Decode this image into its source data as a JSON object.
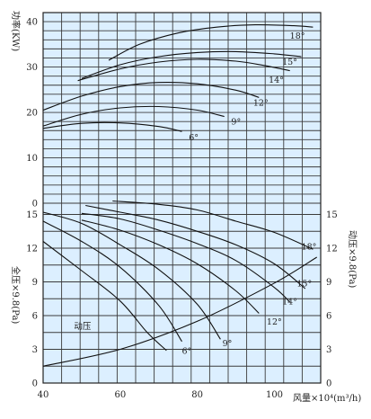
{
  "chart_data": {
    "type": "line",
    "x_axis": {
      "label": "风量×10⁴(m³/h)",
      "range": [
        40,
        112
      ],
      "ticks": [
        40,
        60,
        80,
        100
      ]
    },
    "power_panel": {
      "ylabel": "功率(KW)",
      "ylim": [
        0,
        42
      ],
      "ticks": [
        0,
        10,
        20,
        30,
        40
      ],
      "series": [
        {
          "name": "18°",
          "x": [
            57,
            65,
            75,
            85,
            95,
            105,
            110
          ],
          "y": [
            31.5,
            35,
            37.5,
            38.8,
            39.3,
            39.1,
            38.8
          ]
        },
        {
          "name": "15°",
          "x": [
            50,
            60,
            70,
            80,
            90,
            100,
            107
          ],
          "y": [
            27.5,
            30.5,
            32.3,
            33.2,
            33.4,
            32.9,
            32.3
          ]
        },
        {
          "name": "14°",
          "x": [
            49,
            60,
            70,
            80,
            90,
            97,
            104
          ],
          "y": [
            27,
            29.6,
            31.1,
            31.7,
            31.3,
            30.4,
            29.2
          ]
        },
        {
          "name": "12°",
          "x": [
            40,
            50,
            60,
            70,
            80,
            90,
            96
          ],
          "y": [
            20.5,
            23.6,
            25.7,
            26.6,
            26.3,
            24.9,
            23.3
          ]
        },
        {
          "name": "9°",
          "x": [
            40,
            50,
            60,
            70,
            80,
            87
          ],
          "y": [
            17,
            19.6,
            21,
            21.3,
            20.5,
            19.1
          ]
        },
        {
          "name": "6°",
          "x": [
            40,
            50,
            60,
            70,
            76
          ],
          "y": [
            16.5,
            17.6,
            17.7,
            16.9,
            15.8
          ]
        }
      ],
      "annotations": [
        {
          "text": "18°",
          "x": 104,
          "y": 36.3
        },
        {
          "text": "15°",
          "x": 102,
          "y": 30.5
        },
        {
          "text": "14°",
          "x": 98.5,
          "y": 26.5
        },
        {
          "text": "12°",
          "x": 94.5,
          "y": 21.5
        },
        {
          "text": "9°",
          "x": 88.8,
          "y": 17.3
        },
        {
          "text": "6°",
          "x": 77.8,
          "y": 13.9
        }
      ]
    },
    "pressure_panel": {
      "ylabel": "全压×9.8(Pa)",
      "ylabel_right": "动压×9.8(Pa)",
      "ylim": [
        0,
        16
      ],
      "ticks": [
        0,
        3,
        6,
        9,
        12,
        15
      ],
      "series": [
        {
          "name": "18°",
          "x": [
            58,
            70,
            80,
            90,
            100,
            110
          ],
          "y": [
            16.2,
            15.9,
            15.4,
            14.4,
            13.4,
            11.9
          ]
        },
        {
          "name": "15°",
          "x": [
            51,
            60,
            70,
            80,
            90,
            100,
            108
          ],
          "y": [
            15.8,
            15.2,
            14.5,
            13.5,
            12.3,
            10.6,
            8.4
          ]
        },
        {
          "name": "14°",
          "x": [
            50,
            60,
            70,
            80,
            90,
            100,
            104
          ],
          "y": [
            15.1,
            14.6,
            13.6,
            12.4,
            10.9,
            8.5,
            7.2
          ]
        },
        {
          "name": "12°",
          "x": [
            50,
            60,
            70,
            80,
            90,
            96
          ],
          "y": [
            14.5,
            13.6,
            12.3,
            10.6,
            8.2,
            6.2
          ]
        },
        {
          "name": "9°",
          "x": [
            40,
            50,
            60,
            70,
            80,
            86
          ],
          "y": [
            15.2,
            14.2,
            12.3,
            10.1,
            7,
            3.9
          ]
        },
        {
          "name": "6°",
          "x": [
            40,
            50,
            60,
            70,
            76
          ],
          "y": [
            14.4,
            12.6,
            10.3,
            6.9,
            3.7
          ]
        },
        {
          "name": "动压",
          "x": [
            40,
            60,
            80,
            100,
            111
          ],
          "y": [
            1.5,
            3,
            5.5,
            8.9,
            11.2
          ]
        },
        {
          "name": "",
          "x": [
            40,
            50,
            60,
            67,
            72
          ],
          "y": [
            12.6,
            10,
            7.3,
            4.5,
            2.9
          ]
        }
      ],
      "annotations": [
        {
          "text": "18°",
          "x": 107,
          "y": 11.9
        },
        {
          "text": "15°",
          "x": 105.8,
          "y": 8.6
        },
        {
          "text": "14°",
          "x": 102,
          "y": 7.0
        },
        {
          "text": "12°",
          "x": 98,
          "y": 5.2
        },
        {
          "text": "9°",
          "x": 86.5,
          "y": 3.3
        },
        {
          "text": "6°",
          "x": 76,
          "y": 2.6
        },
        {
          "text": "动压",
          "x": 48,
          "y": 4.8
        }
      ]
    }
  }
}
